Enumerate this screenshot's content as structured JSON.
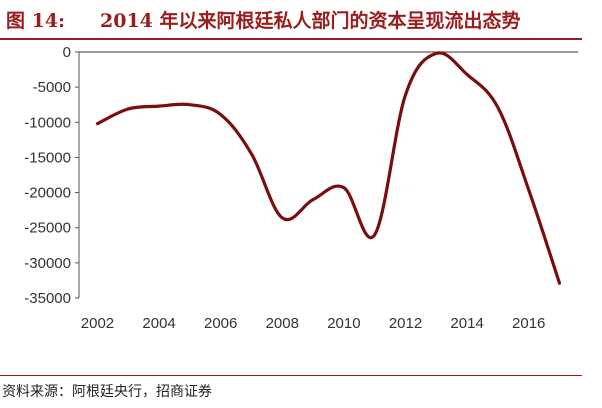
{
  "header": {
    "figure_label": "图 14:",
    "title": "2014 年以来阿根廷私人部门的资本呈现流出态势"
  },
  "footer": {
    "source": "资料来源：阿根廷央行，招商证券"
  },
  "colors": {
    "line": "#7a0e0e",
    "accent": "#9b1c1c"
  },
  "chart_data": {
    "type": "line",
    "title": "2014 年以来阿根廷私人部门的资本呈现流出态势",
    "xlabel": "",
    "ylabel": "",
    "x": [
      2002,
      2003,
      2004,
      2005,
      2006,
      2007,
      2008,
      2009,
      2010,
      2011,
      2012,
      2013,
      2014,
      2015,
      2016,
      2017
    ],
    "values": [
      -10200,
      -8100,
      -7700,
      -7500,
      -8900,
      -14500,
      -23600,
      -21000,
      -19300,
      -26000,
      -6100,
      -200,
      -3200,
      -7900,
      -19600,
      -32900
    ],
    "xlim": [
      2002,
      2017
    ],
    "ylim": [
      -35000,
      0
    ],
    "xticks": [
      "2002",
      "2004",
      "2006",
      "2008",
      "2010",
      "2012",
      "2014",
      "2016"
    ],
    "yticks": [
      "0",
      "-5000",
      "-10000",
      "-15000",
      "-20000",
      "-25000",
      "-30000",
      "-35000"
    ],
    "grid": false,
    "legend": "none"
  }
}
